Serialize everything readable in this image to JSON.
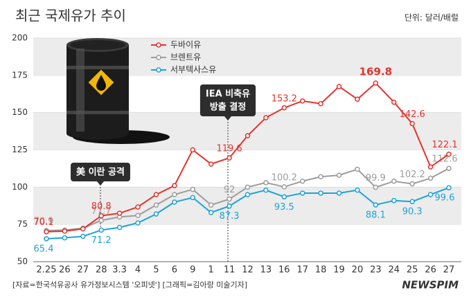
{
  "chart_data": {
    "type": "line",
    "title": "최근 국제유가 추이",
    "unit": "단위: 달러/배럴",
    "source": "[자료=한국석유공사 유가정보시스템 '오피넷'] [그래픽=김아랑 미술기자]",
    "logo": "NEWSPIM",
    "categories": [
      "2.25",
      "26",
      "27",
      "28",
      "3.3",
      "4",
      "5",
      "6",
      "9",
      "1",
      "11",
      "12",
      "13",
      "16",
      "17",
      "18",
      "19",
      "20",
      "23",
      "24",
      "25",
      "26",
      "27"
    ],
    "series": [
      {
        "name": "두바이유",
        "color": "#e5322d",
        "values": [
          70.1,
          70.5,
          72,
          80.8,
          82.5,
          86.7,
          95,
          101,
          125,
          115.5,
          119.6,
          134.5,
          146.6,
          153.2,
          157.8,
          156,
          167.5,
          159,
          169.8,
          157,
          142.6,
          113.6,
          122.1
        ],
        "value_labels": [
          "70.1",
          null,
          null,
          "80.8",
          null,
          null,
          null,
          null,
          null,
          null,
          "119.6",
          null,
          null,
          "153.2",
          null,
          null,
          null,
          null,
          "169.8",
          null,
          "142.6",
          null,
          "122.1"
        ]
      },
      {
        "name": "브렌트유",
        "color": "#9c9c9c",
        "values": [
          70.9,
          71.2,
          72.5,
          77.7,
          80,
          81,
          88,
          95,
          98.5,
          88,
          92,
          100,
          103,
          100.2,
          104,
          107,
          108,
          112,
          99.9,
          104,
          102.2,
          106,
          112.6
        ],
        "value_labels": [
          "70.9",
          null,
          null,
          "77.7",
          null,
          null,
          null,
          null,
          null,
          null,
          "92",
          null,
          null,
          "100.2",
          null,
          null,
          null,
          null,
          "99.9",
          null,
          "102.2",
          null,
          "112.6"
        ]
      },
      {
        "name": "서부텍사스유",
        "color": "#1ba3da",
        "values": [
          65.4,
          66,
          67,
          71.2,
          73,
          76,
          82,
          90,
          93,
          83,
          87.3,
          95,
          98,
          93.5,
          96,
          96,
          96,
          98,
          88.1,
          91,
          90.3,
          95,
          99.6
        ],
        "value_labels": [
          "65.4",
          null,
          null,
          "71.2",
          null,
          null,
          null,
          null,
          null,
          null,
          "87.3",
          null,
          null,
          "93.5",
          null,
          null,
          null,
          null,
          "88.1",
          null,
          "90.3",
          null,
          "99.6"
        ]
      }
    ],
    "annotations": [
      {
        "text": [
          "美 이란 공격"
        ]
      },
      {
        "text": [
          "IEA 비축유",
          "방출 결정"
        ]
      }
    ],
    "ylim": [
      50,
      200
    ],
    "yticks": [
      50,
      75,
      100,
      125,
      150,
      175,
      200
    ],
    "grid": "bands"
  }
}
